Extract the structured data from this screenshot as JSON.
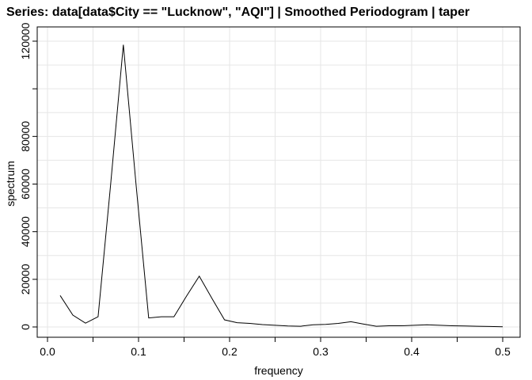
{
  "chart_data": {
    "type": "line",
    "title": "Series: data[data$City == \"Lucknow\", \"AQI\"]  |  Smoothed Periodogram  |  taper",
    "xlabel": "frequency",
    "ylabel": "spectrum",
    "xlim": [
      0,
      0.5
    ],
    "ylim": [
      -4500,
      120000
    ],
    "x_ticks": [
      0.0,
      0.1,
      0.2,
      0.3,
      0.4,
      0.5
    ],
    "x_tick_labels": [
      "0.0",
      "0.1",
      "0.2",
      "0.3",
      "0.4",
      "0.5"
    ],
    "x_minor_ticks": [
      0.05,
      0.15,
      0.25,
      0.35,
      0.45
    ],
    "y_ticks": [
      0,
      20000,
      40000,
      60000,
      80000,
      100000,
      120000
    ],
    "y_tick_labels": [
      "0",
      "20000",
      "40000",
      "60000",
      "80000",
      "",
      "120000"
    ],
    "grid": true,
    "legend": "none",
    "colors": {
      "line": "#000000",
      "grid": "#e6e6e6",
      "axis": "#000000"
    },
    "series": [
      {
        "x": [
          0.0139,
          0.0278,
          0.0417,
          0.0556,
          0.0694,
          0.0833,
          0.0972,
          0.1111,
          0.125,
          0.1389,
          0.1528,
          0.1667,
          0.1806,
          0.1944,
          0.2083,
          0.2222,
          0.2361,
          0.25,
          0.2639,
          0.2778,
          0.2917,
          0.3056,
          0.3194,
          0.3333,
          0.3472,
          0.3611,
          0.375,
          0.3889,
          0.4028,
          0.4167,
          0.4306,
          0.4444,
          0.4583,
          0.4722,
          0.4861,
          0.5
        ],
        "y": [
          13200,
          5000,
          1600,
          4300,
          60000,
          118500,
          60000,
          3800,
          4300,
          4300,
          13000,
          21300,
          12000,
          3000,
          1800,
          1500,
          1000,
          700,
          400,
          300,
          900,
          1100,
          1500,
          2200,
          1200,
          300,
          500,
          500,
          700,
          900,
          700,
          500,
          400,
          300,
          200,
          50
        ]
      }
    ]
  }
}
